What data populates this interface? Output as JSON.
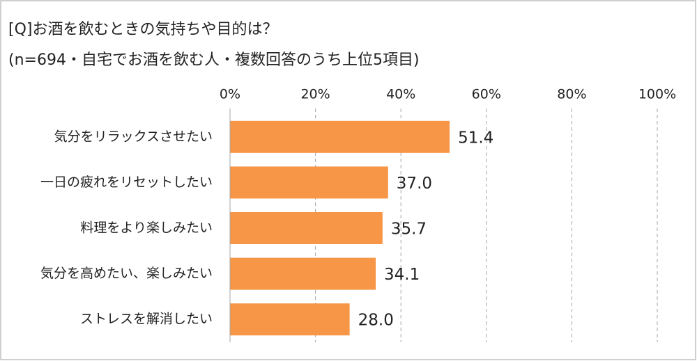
{
  "chart_data": {
    "type": "bar",
    "orientation": "horizontal",
    "title": "[Q]お酒を飲むときの気持ちや目的は？",
    "subtitle": "(n=694・自宅でお酒を飲む人・複数回答のうち上位5項目)",
    "categories": [
      "気分をリラックスさせたい",
      "一日の疲れをリセットしたい",
      "料理をより楽しみたい",
      "気分を高めたい、楽しみたい",
      "ストレスを解消したい"
    ],
    "values": [
      51.4,
      37.0,
      35.7,
      34.1,
      28.0
    ],
    "value_labels": [
      "51.4",
      "37.0",
      "35.7",
      "34.1",
      "28.0"
    ],
    "color": "#f79646",
    "xlim": [
      0,
      100
    ],
    "xticks": [
      {
        "value": 0,
        "label": "0%"
      },
      {
        "value": 20,
        "label": "20%"
      },
      {
        "value": 40,
        "label": "40%"
      },
      {
        "value": 60,
        "label": "60%"
      },
      {
        "value": 80,
        "label": "80%"
      },
      {
        "value": 100,
        "label": "100%"
      }
    ],
    "grid": true
  }
}
